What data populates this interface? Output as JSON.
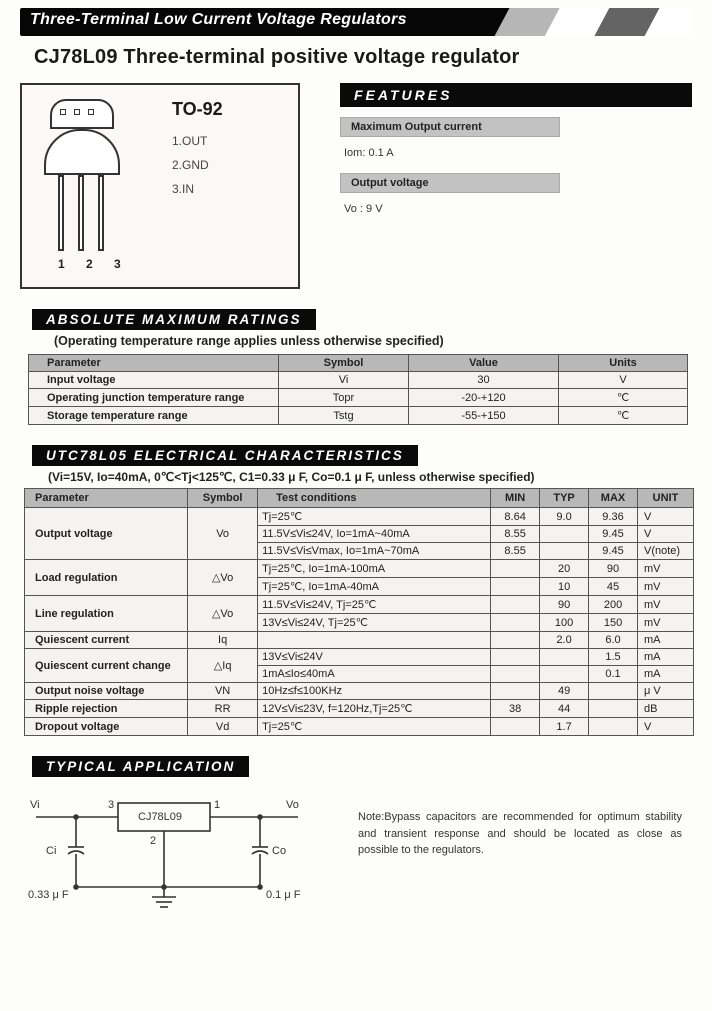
{
  "header_banner": "Three-Terminal Low Current Voltage Regulators",
  "title": "CJ78L09 Three-terminal positive voltage regulator",
  "package": {
    "name": "TO-92",
    "pins": [
      "1.OUT",
      "2.GND",
      "3.IN"
    ],
    "pin_numbers": "1 2 3"
  },
  "features": {
    "heading": "FEATURES",
    "items": [
      {
        "label": "Maximum Output current",
        "value": "Iom: 0.1 A"
      },
      {
        "label": "Output voltage",
        "value": "Vo : 9 V"
      }
    ]
  },
  "abs_max": {
    "heading": "ABSOLUTE MAXIMUM RATINGS",
    "note": "(Operating temperature range applies unless otherwise specified)",
    "columns": [
      "Parameter",
      "Symbol",
      "Value",
      "Units"
    ],
    "rows": [
      [
        "Input voltage",
        "Vi",
        "30",
        "V"
      ],
      [
        "Operating junction temperature range",
        "Topr",
        "-20-+120",
        "℃"
      ],
      [
        "Storage temperature range",
        "Tstg",
        "-55-+150",
        "℃"
      ]
    ]
  },
  "elec": {
    "heading": "UTC78L05 ELECTRICAL CHARACTERISTICS",
    "note": "(Vi=15V, Io=40mA, 0℃<Tj<125℃, C1=0.33 μ F, Co=0.1 μ F, unless otherwise specified)",
    "columns": [
      "Parameter",
      "Symbol",
      "Test conditions",
      "MIN",
      "TYP",
      "MAX",
      "UNIT"
    ],
    "rows": [
      {
        "p": "Output voltage",
        "s": "Vo",
        "rs": 3,
        "c": "Tj=25℃",
        "min": "8.64",
        "typ": "9.0",
        "max": "9.36",
        "u": "V"
      },
      {
        "c": "11.5V≤Vi≤24V, Io=1mA~40mA",
        "min": "8.55",
        "typ": "",
        "max": "9.45",
        "u": "V"
      },
      {
        "c": "11.5V≤Vi≤Vmax, Io=1mA~70mA",
        "min": "8.55",
        "typ": "",
        "max": "9.45",
        "u": "V(note)"
      },
      {
        "p": "Load regulation",
        "s": "△Vo",
        "rs": 2,
        "c": "Tj=25℃, Io=1mA-100mA",
        "min": "",
        "typ": "20",
        "max": "90",
        "u": "mV"
      },
      {
        "c": "Tj=25℃, Io=1mA-40mA",
        "min": "",
        "typ": "10",
        "max": "45",
        "u": "mV"
      },
      {
        "p": "Line regulation",
        "s": "△Vo",
        "rs": 2,
        "c": "11.5V≤Vi≤24V, Tj=25℃",
        "min": "",
        "typ": "90",
        "max": "200",
        "u": "mV"
      },
      {
        "c": "13V≤Vi≤24V, Tj=25℃",
        "min": "",
        "typ": "100",
        "max": "150",
        "u": "mV"
      },
      {
        "p": "Quiescent current",
        "s": "Iq",
        "rs": 1,
        "c": "",
        "min": "",
        "typ": "2.0",
        "max": "6.0",
        "u": "mA"
      },
      {
        "p": "Quiescent current change",
        "s": "△Iq",
        "rs": 2,
        "c": "13V≤Vi≤24V",
        "min": "",
        "typ": "",
        "max": "1.5",
        "u": "mA"
      },
      {
        "c": "1mA≤Io≤40mA",
        "min": "",
        "typ": "",
        "max": "0.1",
        "u": "mA"
      },
      {
        "p": "Output noise voltage",
        "s": "VN",
        "rs": 1,
        "c": "10Hz≤f≤100KHz",
        "min": "",
        "typ": "49",
        "max": "",
        "u": "μ V"
      },
      {
        "p": "Ripple rejection",
        "s": "RR",
        "rs": 1,
        "c": "12V≤Vi≤23V, f=120Hz,Tj=25℃",
        "min": "38",
        "typ": "44",
        "max": "",
        "u": "dB"
      },
      {
        "p": "Dropout voltage",
        "s": "Vd",
        "rs": 1,
        "c": "Tj=25℃",
        "min": "",
        "typ": "1.7",
        "max": "",
        "u": "V"
      }
    ]
  },
  "typical": {
    "heading": "TYPICAL APPLICATION",
    "vi": "Vi",
    "vo": "Vo",
    "ic": "CJ78L09",
    "ci": "Ci",
    "co": "Co",
    "cival": "0.33 μ F",
    "coval": "0.1 μ F",
    "p3": "3",
    "p1": "1",
    "p2": "2",
    "note": "Note:Bypass capacitors are recommended for optimum stability and transient response and should be located as close as possible to the regulators."
  }
}
